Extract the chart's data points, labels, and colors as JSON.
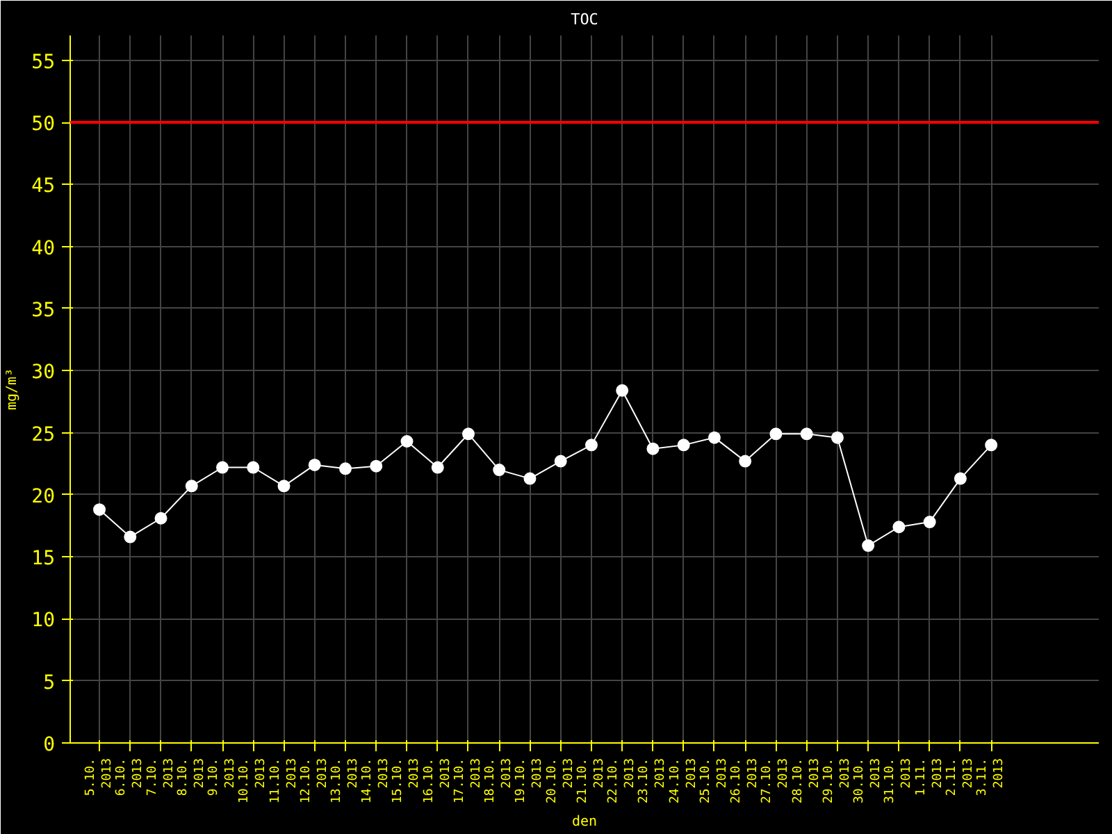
{
  "chart_data": {
    "type": "line",
    "title": "TOC",
    "ylabel": "mg/m³",
    "xlabel": "den",
    "categories": [
      "5.10.\n2013",
      "6.10.\n2013",
      "7.10.\n2013",
      "8.10.\n2013",
      "9.10.\n2013",
      "10.10.\n2013",
      "11.10.\n2013",
      "12.10.\n2013",
      "13.10.\n2013",
      "14.10.\n2013",
      "15.10.\n2013",
      "16.10.\n2013",
      "17.10.\n2013",
      "18.10.\n2013",
      "19.10.\n2013",
      "20.10.\n2013",
      "21.10.\n2013",
      "22.10.\n2013",
      "23.10.\n2013",
      "24.10.\n2013",
      "25.10.\n2013",
      "26.10.\n2013",
      "27.10.\n2013",
      "28.10.\n2013",
      "29.10.\n2013",
      "30.10.\n2013",
      "31.10.\n2013",
      "1.11.\n2013",
      "2.11.\n2013",
      "3.11.\n2013"
    ],
    "series": [
      {
        "color": "#ffffff",
        "values": [
          18.8,
          16.6,
          18.1,
          20.7,
          22.2,
          22.2,
          20.7,
          22.4,
          22.1,
          22.3,
          24.3,
          22.2,
          24.9,
          22.0,
          21.3,
          22.7,
          24.0,
          28.4,
          23.7,
          24.0,
          24.6,
          22.7,
          24.9,
          24.9,
          24.6,
          15.9,
          17.4,
          17.8,
          21.3,
          24.0
        ]
      }
    ],
    "ylim": [
      0,
      57
    ],
    "yticks": [
      0,
      5,
      10,
      15,
      20,
      25,
      30,
      35,
      40,
      45,
      50,
      55
    ],
    "ref_lines": [
      {
        "axis": "y",
        "value": 50,
        "color": "#ff0000"
      }
    ],
    "grid": true,
    "marker": "circle",
    "line_style": "solid"
  }
}
